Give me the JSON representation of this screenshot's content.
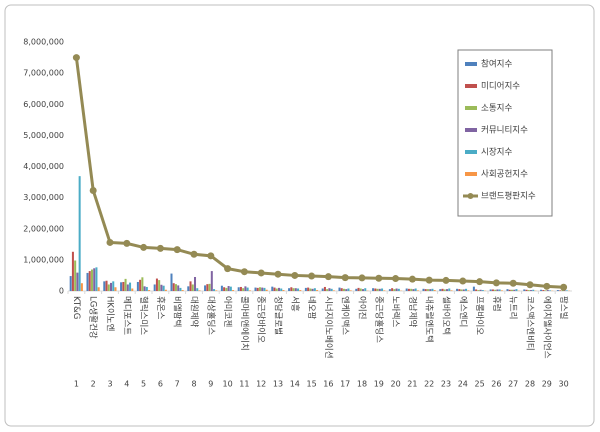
{
  "chart_data": {
    "type": "bar_line",
    "categories": [
      "KT&G",
      "LG생활건강",
      "HK이노엔",
      "메디포스트",
      "헬릭스미스",
      "휴온스",
      "비엘팜텍",
      "대원제약",
      "대상홀딩스",
      "아미코젠",
      "콜마비앤에이치",
      "종근당바이오",
      "청담글로벌",
      "서흥",
      "네오팜",
      "시너지이노베이션",
      "엔케이맥스",
      "아이진",
      "종근당홀딩스",
      "노바렉스",
      "경남제약",
      "내츄럴엔도텍",
      "셀바이오텍",
      "에스엔디",
      "프롬바이오",
      "휴럼",
      "뉴트리",
      "코스맥스엔비티",
      "에이치엘사이언스",
      "팜스빌"
    ],
    "ranks": [
      1,
      2,
      3,
      4,
      5,
      6,
      7,
      8,
      9,
      10,
      11,
      12,
      13,
      14,
      15,
      16,
      17,
      18,
      19,
      20,
      21,
      22,
      23,
      24,
      25,
      26,
      27,
      28,
      29,
      30
    ],
    "series": [
      {
        "name": "참여지수",
        "color": "#4f81bd",
        "kind": "bar",
        "values": [
          480000,
          580000,
          310000,
          280000,
          290000,
          210000,
          560000,
          150000,
          180000,
          170000,
          120000,
          110000,
          140000,
          90000,
          100000,
          80000,
          110000,
          70000,
          90000,
          60000,
          80000,
          70000,
          60000,
          70000,
          140000,
          50000,
          60000,
          50000,
          40000,
          30000
        ]
      },
      {
        "name": "미디어지수",
        "color": "#c0504d",
        "kind": "bar",
        "values": [
          1260000,
          640000,
          330000,
          290000,
          360000,
          400000,
          250000,
          310000,
          220000,
          120000,
          130000,
          100000,
          110000,
          120000,
          110000,
          130000,
          90000,
          100000,
          80000,
          90000,
          70000,
          60000,
          70000,
          60000,
          50000,
          50000,
          40000,
          40000,
          30000,
          20000
        ]
      },
      {
        "name": "소통지수",
        "color": "#9bbb59",
        "kind": "bar",
        "values": [
          980000,
          690000,
          210000,
          390000,
          440000,
          350000,
          220000,
          210000,
          230000,
          100000,
          90000,
          120000,
          80000,
          90000,
          80000,
          60000,
          70000,
          80000,
          70000,
          60000,
          70000,
          60000,
          50000,
          50000,
          30000,
          40000,
          40000,
          30000,
          20000,
          20000
        ]
      },
      {
        "name": "커뮤니티지수",
        "color": "#8064a2",
        "kind": "bar",
        "values": [
          590000,
          730000,
          260000,
          210000,
          150000,
          200000,
          180000,
          450000,
          640000,
          160000,
          150000,
          110000,
          100000,
          90000,
          70000,
          90000,
          60000,
          60000,
          70000,
          80000,
          60000,
          60000,
          60000,
          50000,
          40000,
          50000,
          40000,
          30000,
          30000,
          20000
        ]
      },
      {
        "name": "시장지수",
        "color": "#4bacc6",
        "kind": "bar",
        "values": [
          3690000,
          760000,
          310000,
          270000,
          130000,
          170000,
          100000,
          90000,
          60000,
          140000,
          110000,
          100000,
          80000,
          80000,
          90000,
          70000,
          80000,
          90000,
          80000,
          70000,
          80000,
          70000,
          80000,
          70000,
          30000,
          50000,
          60000,
          40000,
          20000,
          20000
        ]
      },
      {
        "name": "사회공헌지수",
        "color": "#f79646",
        "kind": "bar",
        "values": [
          250000,
          120000,
          120000,
          80000,
          30000,
          40000,
          30000,
          20000,
          20000,
          30000,
          20000,
          40000,
          30000,
          30000,
          30000,
          20000,
          20000,
          10000,
          20000,
          10000,
          20000,
          30000,
          20000,
          20000,
          10000,
          20000,
          10000,
          10000,
          10000,
          10000
        ]
      },
      {
        "name": "브랜드평판지수",
        "color": "#948a54",
        "kind": "line",
        "values": [
          7500000,
          3230000,
          1560000,
          1530000,
          1400000,
          1370000,
          1330000,
          1180000,
          1130000,
          720000,
          620000,
          580000,
          540000,
          500000,
          480000,
          460000,
          430000,
          420000,
          410000,
          400000,
          380000,
          350000,
          340000,
          320000,
          300000,
          260000,
          250000,
          200000,
          150000,
          120000
        ]
      }
    ],
    "ylim": [
      0,
      8000000
    ],
    "yticks": [
      0,
      {
        "value": 1000000,
        "label": "1,000,000"
      },
      {
        "value": 2000000,
        "label": "2,000,000"
      },
      {
        "value": 3000000,
        "label": "3,000,000"
      },
      {
        "value": 4000000,
        "label": "4,000,000"
      },
      {
        "value": 5000000,
        "label": "5,000,000"
      },
      {
        "value": 6000000,
        "label": "6,000,000"
      },
      {
        "value": 7000000,
        "label": "7,000,000"
      },
      {
        "value": 8000000,
        "label": "8,000,000"
      }
    ],
    "grid": false,
    "legend": "upper right"
  }
}
